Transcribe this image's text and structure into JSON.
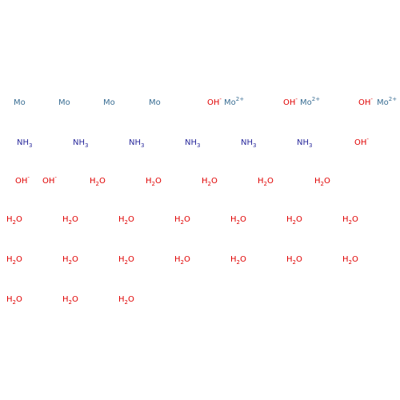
{
  "fragments": [
    {
      "symbol": "Mo"
    },
    {
      "symbol": "Mo"
    },
    {
      "symbol": "Mo"
    },
    {
      "symbol": "Mo"
    },
    {
      "symbol": "OH",
      "charge": "-"
    },
    {
      "symbol": "Mo",
      "charge": "2+"
    },
    {
      "symbol": "OH",
      "charge": "-"
    },
    {
      "symbol": "Mo",
      "charge": "2+"
    },
    {
      "symbol": "OH",
      "charge": "-"
    },
    {
      "symbol": "Mo",
      "charge": "2+"
    },
    {
      "symbol": "NH",
      "sub": "3"
    },
    {
      "symbol": "NH",
      "sub": "3"
    },
    {
      "symbol": "NH",
      "sub": "3"
    },
    {
      "symbol": "NH",
      "sub": "3"
    },
    {
      "symbol": "NH",
      "sub": "3"
    },
    {
      "symbol": "NH",
      "sub": "3"
    },
    {
      "symbol": "OH",
      "charge": "-"
    },
    {
      "symbol": "OH",
      "charge": "-"
    },
    {
      "symbol": "OH",
      "charge": "-"
    },
    {
      "symbol": "H",
      "sub": "2",
      "tail": "O"
    },
    {
      "symbol": "H",
      "sub": "2",
      "tail": "O"
    },
    {
      "symbol": "H",
      "sub": "2",
      "tail": "O"
    },
    {
      "symbol": "H",
      "sub": "2",
      "tail": "O"
    },
    {
      "symbol": "H",
      "sub": "2",
      "tail": "O"
    },
    {
      "symbol": "H",
      "sub": "2",
      "tail": "O"
    },
    {
      "symbol": "H",
      "sub": "2",
      "tail": "O"
    },
    {
      "symbol": "H",
      "sub": "2",
      "tail": "O"
    },
    {
      "symbol": "H",
      "sub": "2",
      "tail": "O"
    },
    {
      "symbol": "H",
      "sub": "2",
      "tail": "O"
    },
    {
      "symbol": "H",
      "sub": "2",
      "tail": "O"
    },
    {
      "symbol": "H",
      "sub": "2",
      "tail": "O"
    },
    {
      "symbol": "H",
      "sub": "2",
      "tail": "O"
    },
    {
      "symbol": "H",
      "sub": "2",
      "tail": "O"
    },
    {
      "symbol": "H",
      "sub": "2",
      "tail": "O"
    },
    {
      "symbol": "H",
      "sub": "2",
      "tail": "O"
    },
    {
      "symbol": "H",
      "sub": "2",
      "tail": "O"
    },
    {
      "symbol": "H",
      "sub": "2",
      "tail": "O"
    },
    {
      "symbol": "H",
      "sub": "2",
      "tail": "O"
    },
    {
      "symbol": "H",
      "sub": "2",
      "tail": "O"
    },
    {
      "symbol": "H",
      "sub": "2",
      "tail": "O"
    },
    {
      "symbol": "H",
      "sub": "2",
      "tail": "O"
    }
  ]
}
